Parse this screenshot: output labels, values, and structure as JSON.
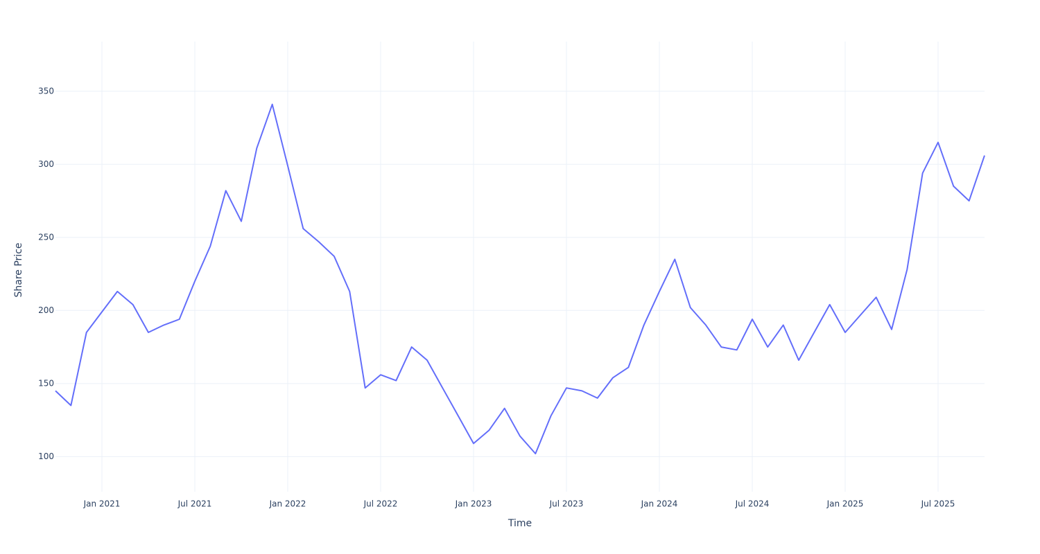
{
  "chart_data": {
    "type": "line",
    "x_label": "Time",
    "y_label": "Share Price",
    "x": [
      "2020-10",
      "2020-11",
      "2020-12",
      "2021-01",
      "2021-02",
      "2021-03",
      "2021-04",
      "2021-05",
      "2021-06",
      "2021-07",
      "2021-08",
      "2021-09",
      "2021-10",
      "2021-11",
      "2021-12",
      "2022-01",
      "2022-02",
      "2022-03",
      "2022-04",
      "2022-05",
      "2022-06",
      "2022-07",
      "2022-08",
      "2022-09",
      "2022-10",
      "2022-11",
      "2022-12",
      "2023-01",
      "2023-02",
      "2023-03",
      "2023-04",
      "2023-05",
      "2023-06",
      "2023-07",
      "2023-08",
      "2023-09",
      "2023-10",
      "2023-11",
      "2023-12",
      "2024-01",
      "2024-02",
      "2024-03",
      "2024-04",
      "2024-05",
      "2024-06",
      "2024-07",
      "2024-08",
      "2024-09",
      "2024-10",
      "2024-11",
      "2024-12",
      "2025-01",
      "2025-02",
      "2025-03",
      "2025-04",
      "2025-05",
      "2025-06",
      "2025-07",
      "2025-08",
      "2025-09",
      "2025-10"
    ],
    "series": [
      {
        "color": "#636efa",
        "values": [
          145,
          135,
          185,
          199,
          213,
          204,
          185,
          190,
          194,
          220,
          244,
          282,
          261,
          311,
          341,
          299,
          256,
          247,
          237,
          213,
          147,
          156,
          152,
          175,
          166,
          147,
          128,
          109,
          118,
          133,
          114,
          102,
          128,
          147,
          145,
          140,
          154,
          161,
          190,
          213,
          235,
          202,
          190,
          175,
          173,
          194,
          175,
          190,
          166,
          185,
          204,
          185,
          197,
          209,
          187,
          228,
          294,
          315,
          285,
          275,
          306
        ]
      }
    ],
    "xlim": [
      "2020-10",
      "2025-10"
    ],
    "xticks": [
      {
        "value": "2021-01",
        "label": "Jan 2021"
      },
      {
        "value": "2021-07",
        "label": "Jul 2021"
      },
      {
        "value": "2022-01",
        "label": "Jan 2022"
      },
      {
        "value": "2022-07",
        "label": "Jul 2022"
      },
      {
        "value": "2023-01",
        "label": "Jan 2023"
      },
      {
        "value": "2023-07",
        "label": "Jul 2023"
      },
      {
        "value": "2024-01",
        "label": "Jan 2024"
      },
      {
        "value": "2024-07",
        "label": "Jul 2024"
      },
      {
        "value": "2025-01",
        "label": "Jan 2025"
      },
      {
        "value": "2025-07",
        "label": "Jul 2025"
      }
    ],
    "ylim": [
      76,
      384
    ],
    "yticks": [
      100,
      150,
      200,
      250,
      300,
      350
    ],
    "grid": true
  }
}
